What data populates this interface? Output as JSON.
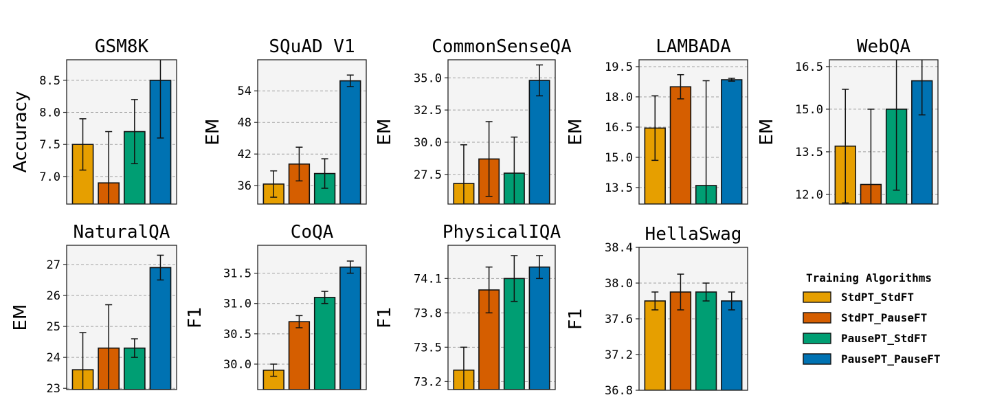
{
  "chart_data": {
    "type": "bar",
    "series_names": [
      "StdPT_StdFT",
      "StdPT_PauseFT",
      "PausePT_StdFT",
      "PausePT_PauseFT"
    ],
    "colors": [
      "#E69F00",
      "#D55E00",
      "#009E73",
      "#0072B2"
    ],
    "legend": {
      "title": "Training Algorithms",
      "placement": "right",
      "entries": [
        "StdPT_StdFT",
        "StdPT_PauseFT",
        "PausePT_StdFT",
        "PausePT_PauseFT"
      ]
    },
    "grid": "y-dashed",
    "panels": [
      {
        "title": "GSM8K",
        "ylabel": "Accuracy",
        "ylim": [
          6.57,
          8.82
        ],
        "yticks": [
          7.0,
          7.5,
          8.0,
          8.5
        ],
        "ytick_labels": [
          "7.0",
          "7.5",
          "8.0",
          "8.5"
        ],
        "values": [
          7.5,
          6.9,
          7.7,
          8.5
        ],
        "errors": [
          0.4,
          0.8,
          0.5,
          0.9
        ]
      },
      {
        "title": "SQuAD V1",
        "ylabel": "EM",
        "ylim": [
          32.5,
          59.9
        ],
        "yticks": [
          36,
          42,
          48,
          54
        ],
        "ytick_labels": [
          "36",
          "42",
          "48",
          "54"
        ],
        "values": [
          36.3,
          40.1,
          38.3,
          55.9
        ],
        "errors": [
          2.5,
          3.2,
          2.8,
          1.1
        ]
      },
      {
        "title": "CommonSenseQA",
        "ylabel": "EM",
        "ylim": [
          25.2,
          36.4
        ],
        "yticks": [
          27.5,
          30.0,
          32.5,
          35.0
        ],
        "ytick_labels": [
          "27.5",
          "30.0",
          "32.5",
          "35.0"
        ],
        "values": [
          26.8,
          28.7,
          27.6,
          34.8
        ],
        "errors": [
          3.0,
          2.9,
          2.8,
          1.2
        ]
      },
      {
        "title": "LAMBADA",
        "ylabel": "EM",
        "ylim": [
          12.68,
          19.84
        ],
        "yticks": [
          13.5,
          15.0,
          16.5,
          18.0,
          19.5
        ],
        "ytick_labels": [
          "13.5",
          "15.0",
          "16.5",
          "18.0",
          "19.5"
        ],
        "values": [
          16.45,
          18.5,
          13.6,
          18.85
        ],
        "errors": [
          1.6,
          0.6,
          5.2,
          0.07
        ]
      },
      {
        "title": "WebQA",
        "ylabel": "EM",
        "ylim": [
          11.66,
          16.74
        ],
        "yticks": [
          12.0,
          13.5,
          15.0,
          16.5
        ],
        "ytick_labels": [
          "12.0",
          "13.5",
          "15.0",
          "16.5"
        ],
        "values": [
          13.7,
          12.35,
          15.0,
          16.0
        ],
        "errors": [
          2.0,
          2.65,
          2.85,
          1.2
        ]
      },
      {
        "title": "NaturalQA",
        "ylabel": "EM",
        "ylim": [
          22.96,
          27.62
        ],
        "yticks": [
          23,
          24,
          25,
          26,
          27
        ],
        "ytick_labels": [
          "23",
          "24",
          "25",
          "26",
          "27"
        ],
        "values": [
          23.6,
          24.3,
          24.3,
          26.9
        ],
        "errors": [
          1.2,
          1.4,
          0.3,
          0.4
        ]
      },
      {
        "title": "CoQA",
        "ylabel": "F1",
        "ylim": [
          29.58,
          31.96
        ],
        "yticks": [
          30.0,
          30.5,
          31.0,
          31.5
        ],
        "ytick_labels": [
          "30.0",
          "30.5",
          "31.0",
          "31.5"
        ],
        "values": [
          29.9,
          30.7,
          31.1,
          31.6
        ],
        "errors": [
          0.1,
          0.1,
          0.1,
          0.1
        ]
      },
      {
        "title": "PhysicalIQA",
        "ylabel": "F1",
        "ylim": [
          73.13,
          74.39
        ],
        "yticks": [
          73.2,
          73.5,
          73.8,
          74.1
        ],
        "ytick_labels": [
          "73.2",
          "73.5",
          "73.8",
          "74.1"
        ],
        "values": [
          73.3,
          74.0,
          74.1,
          74.2
        ],
        "errors": [
          0.2,
          0.2,
          0.2,
          0.1
        ]
      },
      {
        "title": "HellaSwag",
        "ylabel": "F1",
        "ylim": [
          36.8,
          38.4
        ],
        "yticks": [
          36.8,
          37.2,
          37.6,
          38.0,
          38.4
        ],
        "ytick_labels": [
          "36.8",
          "37.2",
          "37.6",
          "38.0",
          "38.4"
        ],
        "values": [
          37.8,
          37.9,
          37.9,
          37.8
        ],
        "errors": [
          0.1,
          0.2,
          0.1,
          0.1
        ]
      }
    ]
  }
}
